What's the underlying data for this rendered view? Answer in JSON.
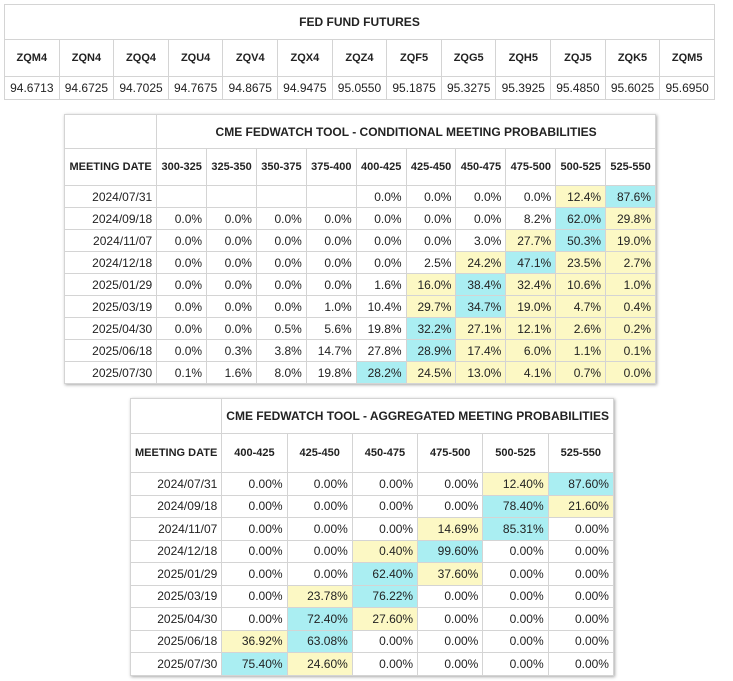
{
  "futures": {
    "title": "FED FUND FUTURES",
    "contracts": [
      "ZQM4",
      "ZQN4",
      "ZQQ4",
      "ZQU4",
      "ZQV4",
      "ZQX4",
      "ZQZ4",
      "ZQF5",
      "ZQG5",
      "ZQH5",
      "ZQJ5",
      "ZQK5",
      "ZQM5"
    ],
    "prices": [
      "94.6713",
      "94.6725",
      "94.7025",
      "94.7675",
      "94.8675",
      "94.9475",
      "95.0550",
      "95.1875",
      "95.3275",
      "95.3925",
      "95.4850",
      "95.6025",
      "95.6950"
    ]
  },
  "conditional": {
    "title": "CME FEDWATCH TOOL - CONDITIONAL MEETING PROBABILITIES",
    "date_header": "MEETING DATE",
    "ranges": [
      "300-325",
      "325-350",
      "350-375",
      "375-400",
      "400-425",
      "425-450",
      "450-475",
      "475-500",
      "500-525",
      "525-550"
    ],
    "rows": [
      {
        "date": "2024/07/31",
        "values": [
          "",
          "",
          "",
          "",
          "0.0%",
          "0.0%",
          "0.0%",
          "0.0%",
          "12.4%",
          "87.6%"
        ],
        "hl": [
          "",
          "",
          "",
          "",
          "",
          "",
          "",
          "",
          "y",
          "b"
        ]
      },
      {
        "date": "2024/09/18",
        "values": [
          "0.0%",
          "0.0%",
          "0.0%",
          "0.0%",
          "0.0%",
          "0.0%",
          "0.0%",
          "8.2%",
          "62.0%",
          "29.8%"
        ],
        "hl": [
          "",
          "",
          "",
          "",
          "",
          "",
          "",
          "",
          "b",
          "y"
        ]
      },
      {
        "date": "2024/11/07",
        "values": [
          "0.0%",
          "0.0%",
          "0.0%",
          "0.0%",
          "0.0%",
          "0.0%",
          "3.0%",
          "27.7%",
          "50.3%",
          "19.0%"
        ],
        "hl": [
          "",
          "",
          "",
          "",
          "",
          "",
          "",
          "y",
          "b",
          "y"
        ]
      },
      {
        "date": "2024/12/18",
        "values": [
          "0.0%",
          "0.0%",
          "0.0%",
          "0.0%",
          "0.0%",
          "2.5%",
          "24.2%",
          "47.1%",
          "23.5%",
          "2.7%"
        ],
        "hl": [
          "",
          "",
          "",
          "",
          "",
          "",
          "y",
          "b",
          "y",
          "y"
        ]
      },
      {
        "date": "2025/01/29",
        "values": [
          "0.0%",
          "0.0%",
          "0.0%",
          "0.0%",
          "1.6%",
          "16.0%",
          "38.4%",
          "32.4%",
          "10.6%",
          "1.0%"
        ],
        "hl": [
          "",
          "",
          "",
          "",
          "",
          "y",
          "b",
          "y",
          "y",
          "y"
        ]
      },
      {
        "date": "2025/03/19",
        "values": [
          "0.0%",
          "0.0%",
          "0.0%",
          "1.0%",
          "10.4%",
          "29.7%",
          "34.7%",
          "19.0%",
          "4.7%",
          "0.4%"
        ],
        "hl": [
          "",
          "",
          "",
          "",
          "",
          "y",
          "b",
          "y",
          "y",
          "y"
        ]
      },
      {
        "date": "2025/04/30",
        "values": [
          "0.0%",
          "0.0%",
          "0.5%",
          "5.6%",
          "19.8%",
          "32.2%",
          "27.1%",
          "12.1%",
          "2.6%",
          "0.2%"
        ],
        "hl": [
          "",
          "",
          "",
          "",
          "",
          "b",
          "y",
          "y",
          "y",
          "y"
        ]
      },
      {
        "date": "2025/06/18",
        "values": [
          "0.0%",
          "0.3%",
          "3.8%",
          "14.7%",
          "27.8%",
          "28.9%",
          "17.4%",
          "6.0%",
          "1.1%",
          "0.1%"
        ],
        "hl": [
          "",
          "",
          "",
          "",
          "",
          "b",
          "y",
          "y",
          "y",
          "y"
        ]
      },
      {
        "date": "2025/07/30",
        "values": [
          "0.1%",
          "1.6%",
          "8.0%",
          "19.8%",
          "28.2%",
          "24.5%",
          "13.0%",
          "4.1%",
          "0.7%",
          "0.0%"
        ],
        "hl": [
          "",
          "",
          "",
          "",
          "b",
          "y",
          "y",
          "y",
          "y",
          "y"
        ]
      }
    ]
  },
  "aggregated": {
    "title": "CME FEDWATCH TOOL - AGGREGATED MEETING PROBABILITIES",
    "date_header": "MEETING DATE",
    "ranges": [
      "400-425",
      "425-450",
      "450-475",
      "475-500",
      "500-525",
      "525-550"
    ],
    "rows": [
      {
        "date": "2024/07/31",
        "values": [
          "0.00%",
          "0.00%",
          "0.00%",
          "0.00%",
          "12.40%",
          "87.60%"
        ],
        "hl": [
          "",
          "",
          "",
          "",
          "y",
          "b"
        ]
      },
      {
        "date": "2024/09/18",
        "values": [
          "0.00%",
          "0.00%",
          "0.00%",
          "0.00%",
          "78.40%",
          "21.60%"
        ],
        "hl": [
          "",
          "",
          "",
          "",
          "b",
          "y"
        ]
      },
      {
        "date": "2024/11/07",
        "values": [
          "0.00%",
          "0.00%",
          "0.00%",
          "14.69%",
          "85.31%",
          "0.00%"
        ],
        "hl": [
          "",
          "",
          "",
          "y",
          "b",
          ""
        ]
      },
      {
        "date": "2024/12/18",
        "values": [
          "0.00%",
          "0.00%",
          "0.40%",
          "99.60%",
          "0.00%",
          "0.00%"
        ],
        "hl": [
          "",
          "",
          "y",
          "b",
          "",
          ""
        ]
      },
      {
        "date": "2025/01/29",
        "values": [
          "0.00%",
          "0.00%",
          "62.40%",
          "37.60%",
          "0.00%",
          "0.00%"
        ],
        "hl": [
          "",
          "",
          "b",
          "y",
          "",
          ""
        ]
      },
      {
        "date": "2025/03/19",
        "values": [
          "0.00%",
          "23.78%",
          "76.22%",
          "0.00%",
          "0.00%",
          "0.00%"
        ],
        "hl": [
          "",
          "y",
          "b",
          "",
          "",
          ""
        ]
      },
      {
        "date": "2025/04/30",
        "values": [
          "0.00%",
          "72.40%",
          "27.60%",
          "0.00%",
          "0.00%",
          "0.00%"
        ],
        "hl": [
          "",
          "b",
          "y",
          "",
          "",
          ""
        ]
      },
      {
        "date": "2025/06/18",
        "values": [
          "36.92%",
          "63.08%",
          "0.00%",
          "0.00%",
          "0.00%",
          "0.00%"
        ],
        "hl": [
          "y",
          "b",
          "",
          "",
          "",
          ""
        ]
      },
      {
        "date": "2025/07/30",
        "values": [
          "75.40%",
          "24.60%",
          "0.00%",
          "0.00%",
          "0.00%",
          "0.00%"
        ],
        "hl": [
          "b",
          "y",
          "",
          "",
          "",
          ""
        ]
      }
    ]
  },
  "colors": {
    "highlight_max": "#aaeef2",
    "highlight_other": "#fcf8c4",
    "border": "#d4d4d4"
  }
}
